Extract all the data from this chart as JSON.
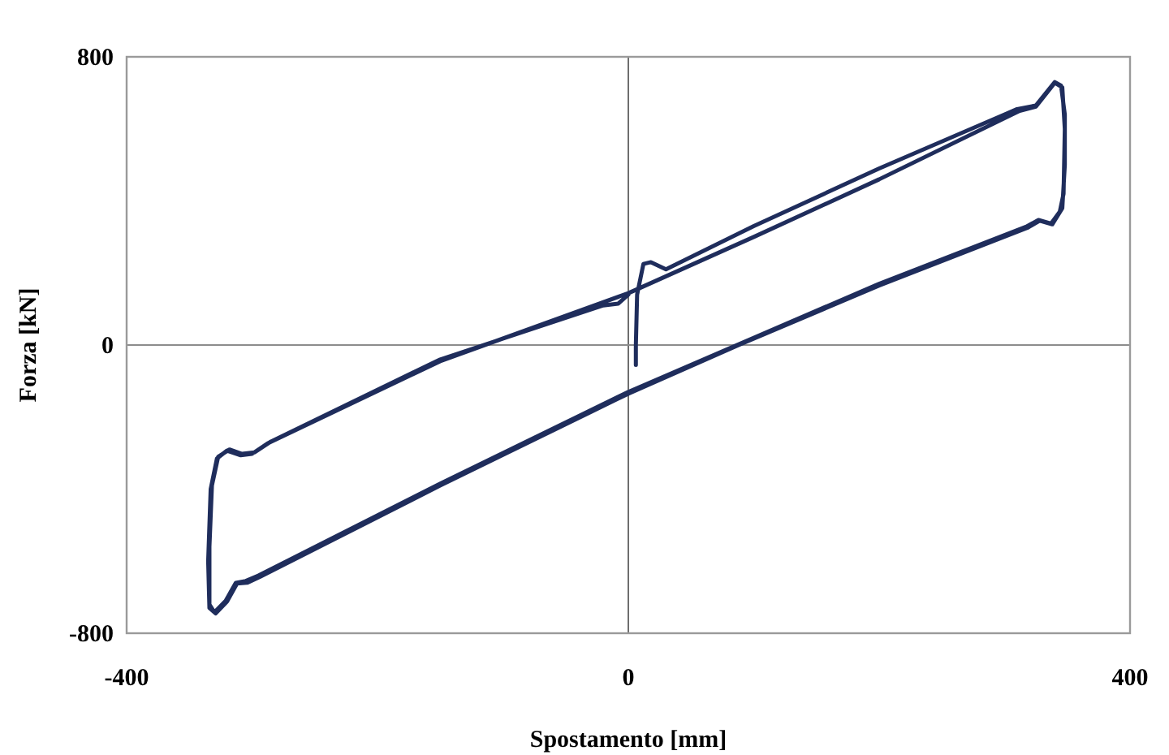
{
  "chart_data": {
    "type": "line",
    "xlabel": "Spostamento [mm]",
    "ylabel": "Forza [kN]",
    "xlim": [
      -400,
      400
    ],
    "xticks": [
      -400,
      0,
      400
    ],
    "ylim": [
      -800,
      800
    ],
    "yticks": [
      -800,
      0,
      800
    ],
    "marker": "none",
    "line_style": "solid",
    "ref_lines": [
      {
        "axis": "x",
        "value": 0,
        "color": "#6e6e6e"
      },
      {
        "axis": "y",
        "value": 0,
        "color": "#8c8c8c"
      }
    ],
    "series": [
      {
        "color": "#1f2d5c",
        "x": [
          6,
          6,
          7,
          12,
          18,
          30,
          100,
          200,
          300,
          310,
          325,
          340,
          345,
          348,
          348,
          346,
          338,
          328,
          318,
          200,
          88,
          0,
          -150,
          -294,
          -304,
          -312,
          -320,
          -329,
          -334,
          -335,
          -333,
          -328,
          -320,
          -309,
          -300,
          -287,
          -150,
          0,
          100,
          200,
          300,
          312,
          325,
          340,
          346,
          348,
          347,
          344,
          337,
          327,
          317,
          200,
          0,
          -150,
          -295,
          -305,
          -313,
          -321,
          -330,
          -334,
          -334,
          -332,
          -327,
          -318,
          -308,
          -298,
          -285,
          -150,
          -20,
          -8,
          0
        ],
        "values": [
          -55,
          0,
          140,
          225,
          230,
          210,
          330,
          490,
          640,
          655,
          665,
          730,
          720,
          640,
          500,
          380,
          335,
          345,
          325,
          165,
          0,
          -135,
          -390,
          -644,
          -660,
          -662,
          -712,
          -745,
          -730,
          -600,
          -400,
          -315,
          -293,
          -306,
          -302,
          -272,
          -45,
          144,
          300,
          460,
          630,
          650,
          662,
          728,
          715,
          600,
          420,
          370,
          337,
          347,
          328,
          170,
          -130,
          -385,
          -640,
          -655,
          -660,
          -710,
          -742,
          -720,
          -560,
          -390,
          -310,
          -290,
          -302,
          -298,
          -268,
          -40,
          110,
          115,
          140
        ]
      }
    ]
  }
}
